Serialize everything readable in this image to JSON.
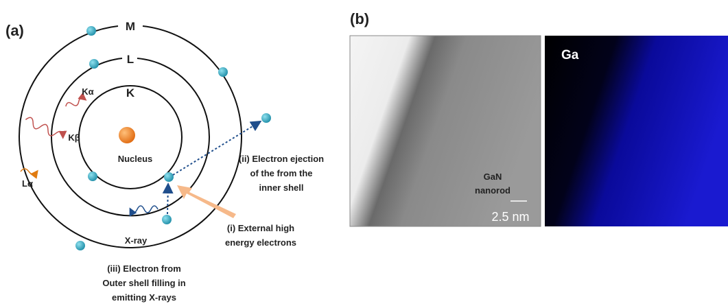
{
  "panel_a": {
    "label": "(a)",
    "shells": [
      "K",
      "L",
      "M"
    ],
    "nucleus": "Nucleus",
    "emissions": [
      "Kα",
      "Kβ",
      "Lα"
    ],
    "xray": "X-ray",
    "annotations": [
      [
        "(ii) Electron ejection",
        "of the from the",
        "inner shell"
      ],
      [
        "(i) External high",
        "energy electrons"
      ],
      [
        "(iii) Electron from",
        "Outer shell filling in",
        "emitting X-rays"
      ]
    ]
  },
  "panel_b": {
    "label": "(b)",
    "image_caption": [
      "GaN",
      "nanorod"
    ],
    "scale_bar": "2.5 nm",
    "map_element": "Ga"
  }
}
